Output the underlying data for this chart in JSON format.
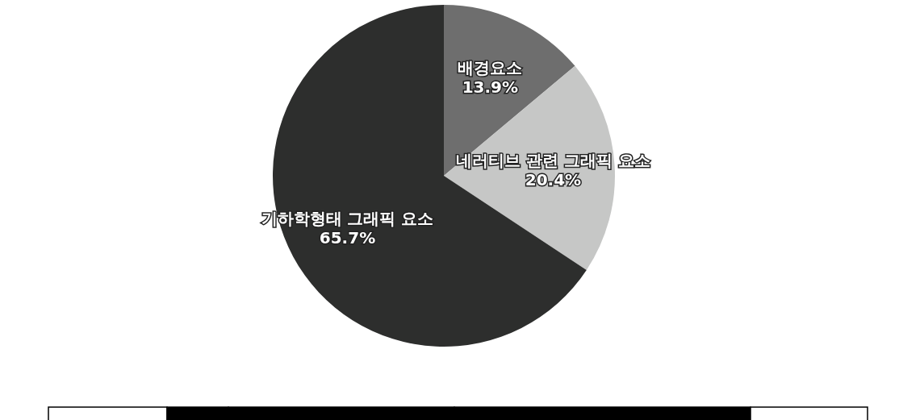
{
  "chart_data": {
    "type": "pie",
    "categories": [
      "배경요소",
      "네러티브 관련 그래픽 요소",
      "기하학형태 그래픽 요소"
    ],
    "values": [
      13.9,
      20.4,
      65.7
    ],
    "colors": [
      "#6e6e6e",
      "#c6c7c6",
      "#2d2e2d"
    ],
    "value_labels": [
      "13.9%",
      "20.4%",
      "65.7%"
    ]
  }
}
